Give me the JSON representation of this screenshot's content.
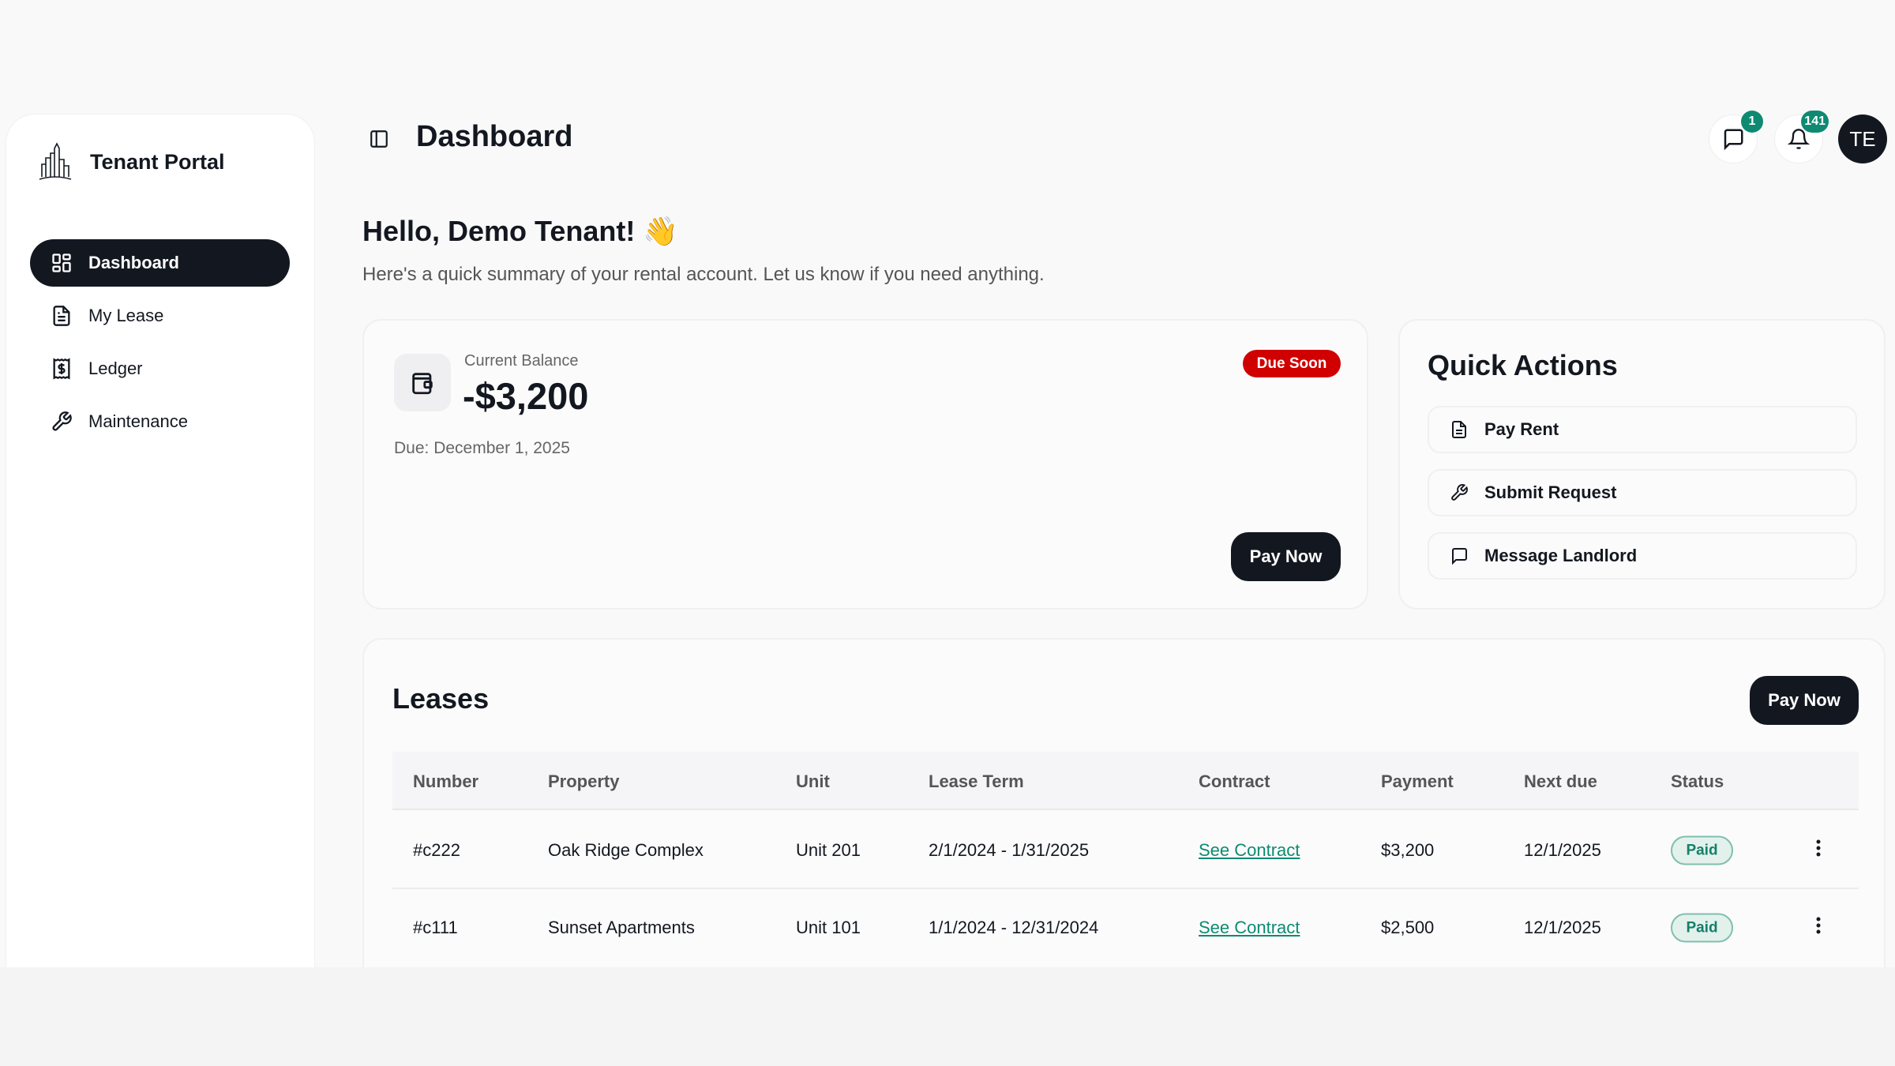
{
  "sidebar": {
    "brand": "Tenant Portal",
    "items": [
      {
        "label": "Dashboard",
        "icon": "dashboard-grid-icon",
        "active": true
      },
      {
        "label": "My Lease",
        "icon": "document-icon"
      },
      {
        "label": "Ledger",
        "icon": "receipt-dollar-icon"
      },
      {
        "label": "Maintenance",
        "icon": "wrench-icon"
      }
    ]
  },
  "header": {
    "title": "Dashboard",
    "messages_count": "1",
    "notifications_count": "141",
    "avatar_initials": "TE"
  },
  "greeting": {
    "title": "Hello, Demo Tenant! 👋",
    "subtitle": "Here's a quick summary of your rental account. Let us know if you need anything."
  },
  "balance": {
    "label": "Current Balance",
    "amount": "-$3,200",
    "due": "Due: December 1, 2025",
    "badge": "Due Soon",
    "pay_label": "Pay Now"
  },
  "quick_actions": {
    "title": "Quick Actions",
    "items": [
      {
        "label": "Pay Rent",
        "icon": "document-icon"
      },
      {
        "label": "Submit Request",
        "icon": "wrench-icon"
      },
      {
        "label": "Message Landlord",
        "icon": "message-icon"
      }
    ]
  },
  "leases": {
    "title": "Leases",
    "pay_label": "Pay Now",
    "columns": [
      "Number",
      "Property",
      "Unit",
      "Lease Term",
      "Contract",
      "Payment",
      "Next due",
      "Status"
    ],
    "rows": [
      {
        "number": "#c222",
        "property": "Oak Ridge Complex",
        "unit": "Unit 201",
        "term": "2/1/2024 - 1/31/2025",
        "contract": "See Contract",
        "payment": "$3,200",
        "next_due": "12/1/2025",
        "status": "Paid"
      },
      {
        "number": "#c111",
        "property": "Sunset Apartments",
        "unit": "Unit 101",
        "term": "1/1/2024 - 12/31/2024",
        "contract": "See Contract",
        "payment": "$2,500",
        "next_due": "12/1/2025",
        "status": "Paid"
      }
    ]
  },
  "colors": {
    "primary": "#131820",
    "accent": "#0f8a72",
    "danger": "#d10000"
  }
}
